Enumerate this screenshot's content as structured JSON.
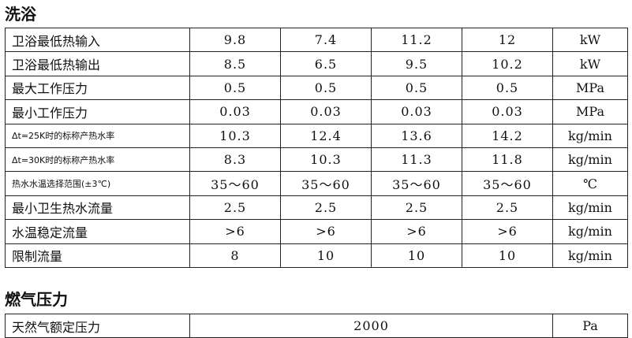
{
  "sections": [
    {
      "title": "洗浴",
      "rows": [
        [
          "卫浴最低热输入",
          "9.8",
          "7.4",
          "11.2",
          "12",
          "kW"
        ],
        [
          "卫浴最低热输出",
          "8.5",
          "6.5",
          "9.5",
          "10.2",
          "kW"
        ],
        [
          "最大工作压力",
          "0.5",
          "0.5",
          "0.5",
          "0.5",
          "MPa"
        ],
        [
          "最小工作压力",
          "0.03",
          "0.03",
          "0.03",
          "0.03",
          "MPa"
        ],
        [
          "Δt=25K时的标称产热水率",
          "10.3",
          "12.4",
          "13.6",
          "14.2",
          "kg/min"
        ],
        [
          "Δt=30K时的标称产热水率",
          "8.3",
          "10.3",
          "11.3",
          "11.8",
          "kg/min"
        ],
        [
          "热水水温选择范围(±3℃)",
          "35～60",
          "35～60",
          "35～60",
          "35～60",
          "℃"
        ],
        [
          "最小卫生热水流量",
          "2.5",
          "2.5",
          "2.5",
          "2.5",
          "kg/min"
        ],
        [
          "水温稳定流量",
          ">6",
          ">6",
          ">6",
          ">6",
          "kg/min"
        ],
        [
          "限制流量",
          "8",
          "10",
          "10",
          "10",
          "kg/min"
        ]
      ]
    },
    {
      "title": "燃气压力",
      "rows": [
        [
          "天然气额定压力",
          "2000",
          "Pa"
        ]
      ]
    }
  ]
}
